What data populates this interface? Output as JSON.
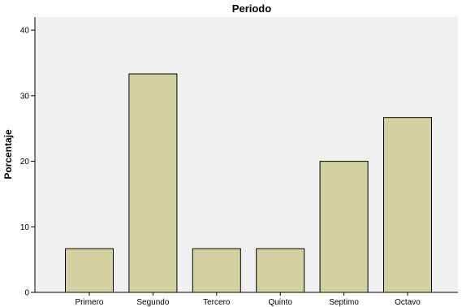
{
  "chart_data": {
    "type": "bar",
    "title": "Periodo",
    "xlabel": "",
    "ylabel": "Porcentaje",
    "categories": [
      "Primero",
      "Segundo",
      "Tercero",
      "Quinto",
      "Septimo",
      "Octavo"
    ],
    "values": [
      6.67,
      33.33,
      6.67,
      6.67,
      20.0,
      26.67
    ],
    "ylim": [
      0,
      42
    ],
    "yticks": [
      0,
      10,
      20,
      30,
      40
    ],
    "grid": false,
    "legend": "none",
    "colors": {
      "plot_background": "#f0f0f0",
      "bar_fill": "#d4d0a0",
      "bar_stroke": "#000000",
      "axis": "#000000"
    }
  }
}
